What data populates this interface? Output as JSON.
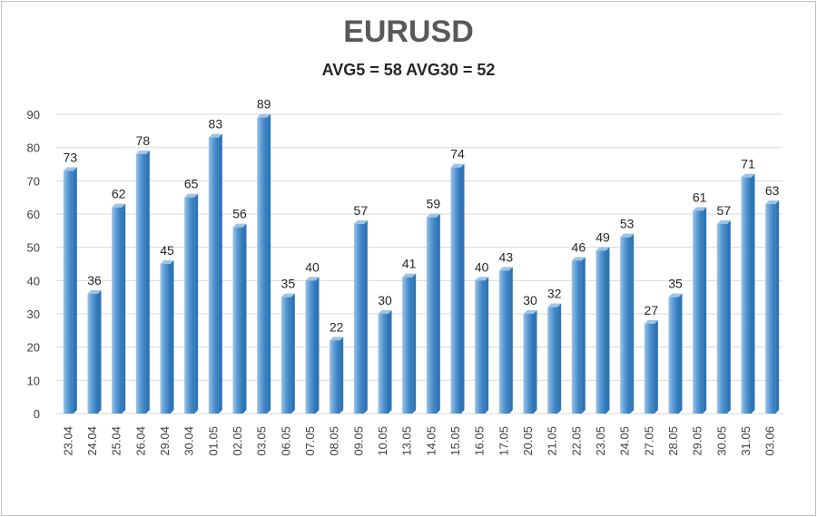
{
  "chart_data": {
    "type": "bar",
    "title": "EURUSD",
    "subtitle": "AVG5 = 58 AVG30 = 52",
    "categories": [
      "23.04",
      "24.04",
      "25.04",
      "26.04",
      "29.04",
      "30.04",
      "01.05",
      "02.05",
      "03.05",
      "06.05",
      "07.05",
      "08.05",
      "09.05",
      "10.05",
      "13.05",
      "14.05",
      "15.05",
      "16.05",
      "17.05",
      "20.05",
      "21.05",
      "22.05",
      "23.05",
      "24.05",
      "27.05",
      "28.05",
      "29.05",
      "30.05",
      "31.05",
      "03.06"
    ],
    "values": [
      73,
      36,
      62,
      78,
      45,
      65,
      83,
      56,
      89,
      35,
      40,
      22,
      57,
      30,
      41,
      59,
      74,
      40,
      43,
      30,
      32,
      46,
      49,
      53,
      27,
      35,
      61,
      57,
      71,
      63
    ],
    "ylim": [
      0,
      90
    ],
    "yticks": [
      0,
      10,
      20,
      30,
      40,
      50,
      60,
      70,
      80,
      90
    ],
    "grid": true,
    "legend": "none",
    "xlabel": "",
    "ylabel": "",
    "colors": {
      "bar": "#5b9bd5",
      "bar_dark": "#2e75b6",
      "bar_light": "#9dc3e6",
      "grid": "#d9d9d9"
    }
  }
}
